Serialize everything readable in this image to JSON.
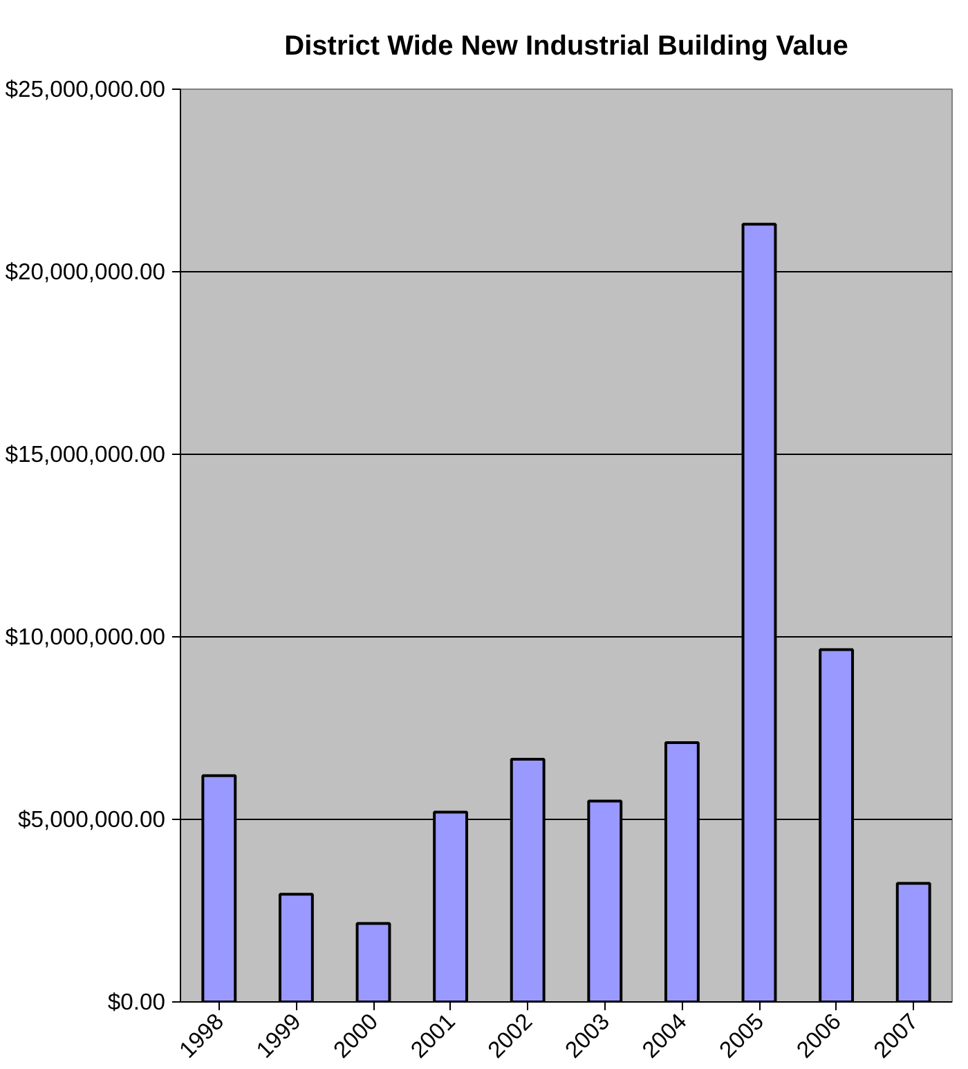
{
  "chart_data": {
    "type": "bar",
    "title": "District Wide New Industrial Building Value",
    "categories": [
      "1998",
      "1999",
      "2000",
      "2001",
      "2002",
      "2003",
      "2004",
      "2005",
      "2006",
      "2007"
    ],
    "values": [
      6200000,
      2950000,
      2150000,
      5200000,
      6650000,
      5500000,
      7100000,
      21300000,
      9650000,
      3250000
    ],
    "color": "#9999ff",
    "ylim": [
      0,
      25000000
    ],
    "yticks": [
      {
        "value": 0,
        "label": "$0.00"
      },
      {
        "value": 5000000,
        "label": "$5,000,000.00"
      },
      {
        "value": 10000000,
        "label": "$10,000,000.00"
      },
      {
        "value": 15000000,
        "label": "$15,000,000.00"
      },
      {
        "value": 20000000,
        "label": "$20,000,000.00"
      },
      {
        "value": 25000000,
        "label": "$25,000,000.00"
      }
    ],
    "grid": "y"
  }
}
